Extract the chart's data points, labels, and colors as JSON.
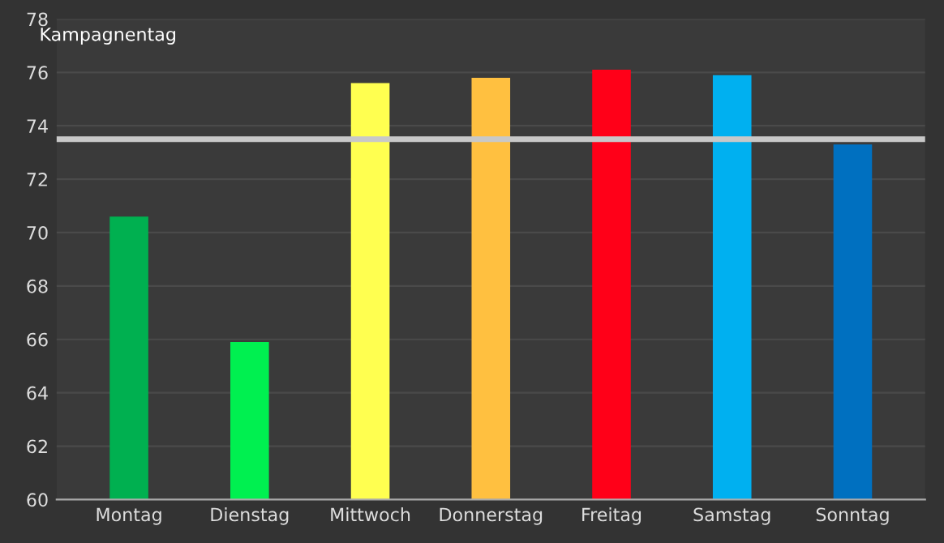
{
  "chart_data": {
    "type": "bar",
    "ylabel": "Kampagnentag",
    "categories": [
      "Montag",
      "Dienstag",
      "Mittwoch",
      "Donnerstag",
      "Freitag",
      "Samstag",
      "Sonntag"
    ],
    "values": [
      70.6,
      65.9,
      75.6,
      75.8,
      76.1,
      75.9,
      73.3
    ],
    "colors": [
      "#00b050",
      "#00f050",
      "#ffff50",
      "#ffc040",
      "#ff0018",
      "#00b0f0",
      "#0070c0"
    ],
    "ylim": [
      60,
      78
    ],
    "yticks": [
      60,
      62,
      64,
      66,
      68,
      70,
      72,
      74,
      76,
      78
    ],
    "grid": "y",
    "ref_lines": [
      {
        "axis": "y",
        "value": 73.5,
        "color": "#c8c8c8"
      }
    ]
  }
}
